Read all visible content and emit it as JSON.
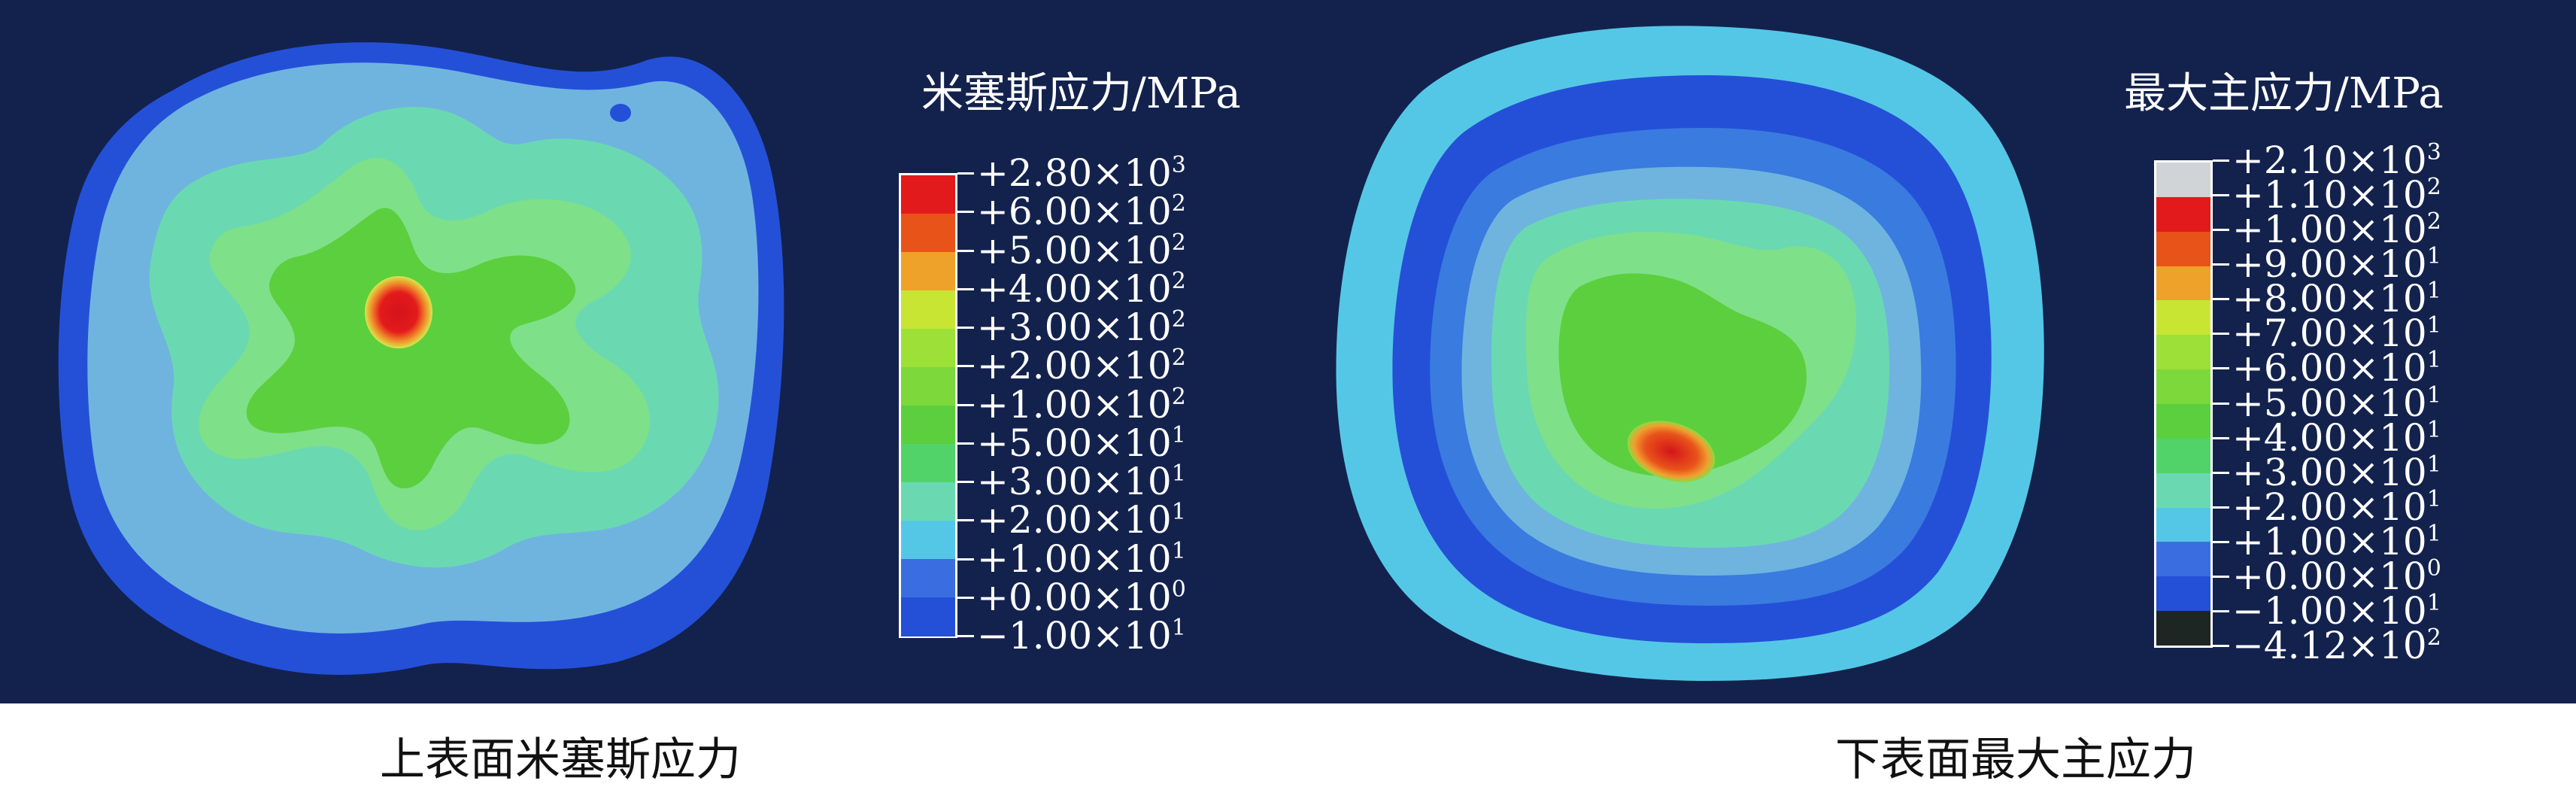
{
  "left_panel": {
    "legend_title": "米塞斯应力/MPa",
    "caption": "上表面米塞斯应力",
    "bands": [
      {
        "color": "#e31a1c"
      },
      {
        "color": "#e8531a"
      },
      {
        "color": "#eea229"
      },
      {
        "color": "#c8e533"
      },
      {
        "color": "#9ce038"
      },
      {
        "color": "#7cd83b"
      },
      {
        "color": "#5ccf3e"
      },
      {
        "color": "#52d36a"
      },
      {
        "color": "#6ad9b2"
      },
      {
        "color": "#55c7e6"
      },
      {
        "color": "#3a6ee0"
      },
      {
        "color": "#2450d8"
      }
    ],
    "ticks": [
      {
        "mantissa": "+2.80×10",
        "exponent": "3"
      },
      {
        "mantissa": "+6.00×10",
        "exponent": "2"
      },
      {
        "mantissa": "+5.00×10",
        "exponent": "2"
      },
      {
        "mantissa": "+4.00×10",
        "exponent": "2"
      },
      {
        "mantissa": "+3.00×10",
        "exponent": "2"
      },
      {
        "mantissa": "+2.00×10",
        "exponent": "2"
      },
      {
        "mantissa": "+1.00×10",
        "exponent": "2"
      },
      {
        "mantissa": "+5.00×10",
        "exponent": "1"
      },
      {
        "mantissa": "+3.00×10",
        "exponent": "1"
      },
      {
        "mantissa": "+2.00×10",
        "exponent": "1"
      },
      {
        "mantissa": "+1.00×10",
        "exponent": "1"
      },
      {
        "mantissa": "+0.00×10",
        "exponent": "0"
      },
      {
        "mantissa": "−1.00×10",
        "exponent": "1"
      }
    ]
  },
  "right_panel": {
    "legend_title": "最大主应力/MPa",
    "caption": "下表面最大主应力",
    "bands": [
      {
        "color": "#d0d4d6"
      },
      {
        "color": "#e31a1c"
      },
      {
        "color": "#e8531a"
      },
      {
        "color": "#eea229"
      },
      {
        "color": "#c8e533"
      },
      {
        "color": "#9ce038"
      },
      {
        "color": "#7cd83b"
      },
      {
        "color": "#5ccf3e"
      },
      {
        "color": "#52d36a"
      },
      {
        "color": "#6ad9b2"
      },
      {
        "color": "#55c7e6"
      },
      {
        "color": "#3a6ee0"
      },
      {
        "color": "#2450d8"
      },
      {
        "color": "#1e2624"
      }
    ],
    "ticks": [
      {
        "mantissa": "+2.10×10",
        "exponent": "3"
      },
      {
        "mantissa": "+1.10×10",
        "exponent": "2"
      },
      {
        "mantissa": "+1.00×10",
        "exponent": "2"
      },
      {
        "mantissa": "+9.00×10",
        "exponent": "1"
      },
      {
        "mantissa": "+8.00×10",
        "exponent": "1"
      },
      {
        "mantissa": "+7.00×10",
        "exponent": "1"
      },
      {
        "mantissa": "+6.00×10",
        "exponent": "1"
      },
      {
        "mantissa": "+5.00×10",
        "exponent": "1"
      },
      {
        "mantissa": "+4.00×10",
        "exponent": "1"
      },
      {
        "mantissa": "+3.00×10",
        "exponent": "1"
      },
      {
        "mantissa": "+2.00×10",
        "exponent": "1"
      },
      {
        "mantissa": "+1.00×10",
        "exponent": "1"
      },
      {
        "mantissa": "+0.00×10",
        "exponent": "0"
      },
      {
        "mantissa": "−1.00×10",
        "exponent": "1"
      },
      {
        "mantissa": "−4.12×10",
        "exponent": "2"
      }
    ]
  },
  "colors": {
    "background": "#13224d",
    "blue_dark": "#2450d8",
    "blue_mid": "#3a7be0",
    "cyan": "#55c7e6",
    "light_blue": "#6fb4df",
    "teal": "#6ad9b2",
    "green_light": "#7fe08a",
    "green": "#5ccf3e",
    "yellow_green": "#b8e33a",
    "orange": "#eea229",
    "red": "#e31a1c"
  }
}
